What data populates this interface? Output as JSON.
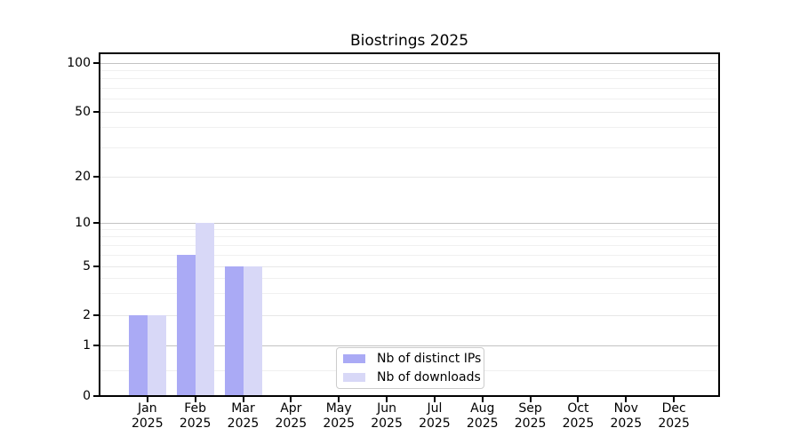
{
  "title": "Biostrings 2025",
  "chart_data": {
    "type": "bar",
    "title": "Biostrings 2025",
    "categories": [
      "Jan",
      "Feb",
      "Mar",
      "Apr",
      "May",
      "Jun",
      "Jul",
      "Aug",
      "Sep",
      "Oct",
      "Nov",
      "Dec"
    ],
    "x_tick_year": "2025",
    "series": [
      {
        "name": "Nb of distinct IPs",
        "color": "#aaaaf5",
        "values": [
          2,
          6,
          5,
          0,
          0,
          0,
          0,
          0,
          0,
          0,
          0,
          0
        ]
      },
      {
        "name": "Nb of downloads",
        "color": "#d8d8f7",
        "values": [
          2,
          10,
          5,
          0,
          0,
          0,
          0,
          0,
          0,
          0,
          0,
          0
        ]
      }
    ],
    "y_axis": {
      "scale": "log-like with zero baseline",
      "tick_labels": [
        "0",
        "1",
        "2",
        "5",
        "10",
        "20",
        "50",
        "100"
      ],
      "tick_values": [
        0,
        1,
        2,
        5,
        10,
        20,
        50,
        100
      ],
      "minor_gridline_values": [
        0.5,
        3,
        4,
        6,
        7,
        8,
        9,
        30,
        40,
        60,
        70,
        80,
        90
      ],
      "ylim": [
        0,
        120
      ]
    },
    "legend": {
      "position": "lower center",
      "entries": [
        "Nb of distinct IPs",
        "Nb of downloads"
      ]
    },
    "grid": true
  },
  "colors": {
    "bar_distinct_ips": "#aaaaf5",
    "bar_downloads": "#d8d8f7",
    "grid_power10": "#c3c3c3",
    "grid_labeled": "#e7e7e7",
    "grid_minor": "#f0f0f0",
    "axis": "#000000",
    "legend_border": "#cccccc",
    "background": "#ffffff",
    "text": "#000000"
  }
}
